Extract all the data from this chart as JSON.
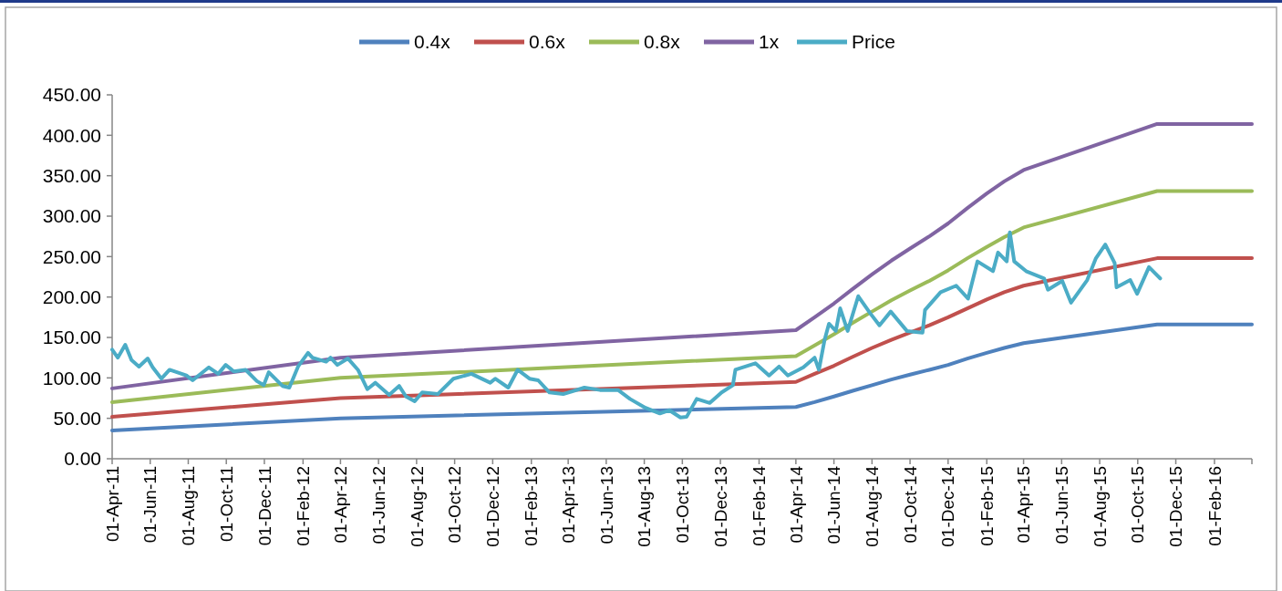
{
  "chart_data": {
    "type": "line",
    "legend": "top",
    "grid": false,
    "line_style": "solid",
    "marker": "none",
    "xlim": [
      "2011-04-01",
      "2016-04-01"
    ],
    "xticks": [
      {
        "value": "2011-04-01",
        "label": "01-Apr-11"
      },
      {
        "value": "2011-06-01",
        "label": "01-Jun-11"
      },
      {
        "value": "2011-08-01",
        "label": "01-Aug-11"
      },
      {
        "value": "2011-10-01",
        "label": "01-Oct-11"
      },
      {
        "value": "2011-12-01",
        "label": "01-Dec-11"
      },
      {
        "value": "2012-02-01",
        "label": "01-Feb-12"
      },
      {
        "value": "2012-04-01",
        "label": "01-Apr-12"
      },
      {
        "value": "2012-06-01",
        "label": "01-Jun-12"
      },
      {
        "value": "2012-08-01",
        "label": "01-Aug-12"
      },
      {
        "value": "2012-10-01",
        "label": "01-Oct-12"
      },
      {
        "value": "2012-12-01",
        "label": "01-Dec-12"
      },
      {
        "value": "2013-02-01",
        "label": "01-Feb-13"
      },
      {
        "value": "2013-04-01",
        "label": "01-Apr-13"
      },
      {
        "value": "2013-06-01",
        "label": "01-Jun-13"
      },
      {
        "value": "2013-08-01",
        "label": "01-Aug-13"
      },
      {
        "value": "2013-10-01",
        "label": "01-Oct-13"
      },
      {
        "value": "2013-12-01",
        "label": "01-Dec-13"
      },
      {
        "value": "2014-02-01",
        "label": "01-Feb-14"
      },
      {
        "value": "2014-04-01",
        "label": "01-Apr-14"
      },
      {
        "value": "2014-06-01",
        "label": "01-Jun-14"
      },
      {
        "value": "2014-08-01",
        "label": "01-Aug-14"
      },
      {
        "value": "2014-10-01",
        "label": "01-Oct-14"
      },
      {
        "value": "2014-12-01",
        "label": "01-Dec-14"
      },
      {
        "value": "2015-02-01",
        "label": "01-Feb-15"
      },
      {
        "value": "2015-04-01",
        "label": "01-Apr-15"
      },
      {
        "value": "2015-06-01",
        "label": "01-Jun-15"
      },
      {
        "value": "2015-08-01",
        "label": "01-Aug-15"
      },
      {
        "value": "2015-10-01",
        "label": "01-Oct-15"
      },
      {
        "value": "2015-12-01",
        "label": "01-Dec-15"
      },
      {
        "value": "2016-02-01",
        "label": "01-Feb-16"
      }
    ],
    "ylim": [
      0,
      450
    ],
    "yticks": [
      {
        "value": 0,
        "label": "0.00"
      },
      {
        "value": 50,
        "label": "50.00"
      },
      {
        "value": 100,
        "label": "100.00"
      },
      {
        "value": 150,
        "label": "150.00"
      },
      {
        "value": 200,
        "label": "200.00"
      },
      {
        "value": 250,
        "label": "250.00"
      },
      {
        "value": 300,
        "label": "300.00"
      },
      {
        "value": 350,
        "label": "350.00"
      },
      {
        "value": 400,
        "label": "400.00"
      },
      {
        "value": 450,
        "label": "450.00"
      }
    ],
    "x": [
      "2011-04-01",
      "2012-04-01",
      "2014-04-01",
      "2014-05-01",
      "2014-06-01",
      "2014-07-01",
      "2014-08-01",
      "2014-09-01",
      "2014-10-01",
      "2014-11-01",
      "2014-12-01",
      "2015-01-01",
      "2015-02-01",
      "2015-03-01",
      "2015-04-01",
      "2015-11-01",
      "2016-04-01"
    ],
    "series": [
      {
        "name": "0.4x",
        "color": "#4f81bd",
        "values": [
          35,
          50,
          64,
          70,
          77,
          84,
          91,
          98,
          104,
          110,
          116,
          124,
          131,
          137,
          143,
          166,
          166
        ]
      },
      {
        "name": "0.6x",
        "color": "#c0504d",
        "values": [
          52,
          75,
          95,
          105,
          115,
          126,
          137,
          147,
          156,
          165,
          175,
          186,
          197,
          206,
          214,
          248,
          248
        ]
      },
      {
        "name": "0.8x",
        "color": "#9bbb59",
        "values": [
          70,
          100,
          127,
          140,
          154,
          168,
          182,
          196,
          208,
          220,
          233,
          248,
          262,
          274,
          286,
          331,
          331
        ]
      },
      {
        "name": "1x",
        "color": "#8064a2",
        "values": [
          87,
          125,
          159,
          175,
          192,
          210,
          228,
          245,
          260,
          275,
          291,
          310,
          328,
          343,
          357,
          414,
          414
        ]
      },
      {
        "name": "Price",
        "color": "#4bacc6",
        "x": [
          "2011-04-01",
          "2011-04-10",
          "2011-04-22",
          "2011-05-02",
          "2011-05-14",
          "2011-05-28",
          "2011-06-05",
          "2011-06-19",
          "2011-07-02",
          "2011-07-29",
          "2011-08-08",
          "2011-09-03",
          "2011-09-18",
          "2011-09-30",
          "2011-10-13",
          "2011-11-01",
          "2011-11-19",
          "2011-11-30",
          "2011-12-08",
          "2011-12-30",
          "2012-01-10",
          "2012-01-24",
          "2012-02-09",
          "2012-02-16",
          "2012-03-09",
          "2012-03-16",
          "2012-03-27",
          "2012-04-13",
          "2012-04-29",
          "2012-05-14",
          "2012-05-27",
          "2012-06-18",
          "2012-07-04",
          "2012-07-15",
          "2012-07-29",
          "2012-08-10",
          "2012-09-04",
          "2012-09-29",
          "2012-10-28",
          "2012-11-27",
          "2012-12-05",
          "2012-12-26",
          "2013-01-10",
          "2013-01-29",
          "2013-02-12",
          "2013-03-02",
          "2013-03-24",
          "2013-04-27",
          "2013-05-22",
          "2013-06-20",
          "2013-07-09",
          "2013-08-03",
          "2013-08-26",
          "2013-09-10",
          "2013-09-28",
          "2013-10-08",
          "2013-10-24",
          "2013-11-14",
          "2013-12-03",
          "2013-12-21",
          "2013-12-25",
          "2014-01-26",
          "2014-02-17",
          "2014-03-05",
          "2014-03-19",
          "2014-04-13",
          "2014-05-01",
          "2014-05-08",
          "2014-05-17",
          "2014-05-24",
          "2014-06-04",
          "2014-06-11",
          "2014-06-23",
          "2014-07-10",
          "2014-07-29",
          "2014-08-13",
          "2014-08-31",
          "2014-09-26",
          "2014-10-21",
          "2014-10-25",
          "2014-11-19",
          "2014-12-14",
          "2015-01-02",
          "2015-01-17",
          "2015-02-11",
          "2015-02-19",
          "2015-03-05",
          "2015-03-10",
          "2015-03-17",
          "2015-04-05",
          "2015-05-04",
          "2015-05-10",
          "2015-06-02",
          "2015-06-16",
          "2015-07-12",
          "2015-07-26",
          "2015-08-10",
          "2015-08-25",
          "2015-08-28",
          "2015-09-19",
          "2015-09-30",
          "2015-10-19",
          "2015-11-06"
        ],
        "values": [
          135,
          125,
          141,
          122,
          114,
          124,
          113,
          99,
          110,
          103,
          97,
          113,
          105,
          116,
          108,
          110,
          96,
          91,
          107,
          90,
          88,
          114,
          131,
          125,
          120,
          125,
          116,
          124,
          110,
          86,
          94,
          79,
          90,
          77,
          71,
          82,
          80,
          99,
          105,
          94,
          99,
          88,
          110,
          99,
          97,
          82,
          80,
          88,
          85,
          85,
          74,
          63,
          56,
          60,
          51,
          52,
          74,
          69,
          82,
          91,
          110,
          118,
          103,
          114,
          103,
          113,
          125,
          110,
          147,
          167,
          158,
          186,
          158,
          201,
          180,
          165,
          182,
          158,
          156,
          184,
          206,
          214,
          198,
          244,
          232,
          255,
          244,
          280,
          244,
          232,
          223,
          209,
          220,
          193,
          221,
          248,
          265,
          242,
          212,
          221,
          204,
          237,
          223
        ]
      }
    ]
  }
}
